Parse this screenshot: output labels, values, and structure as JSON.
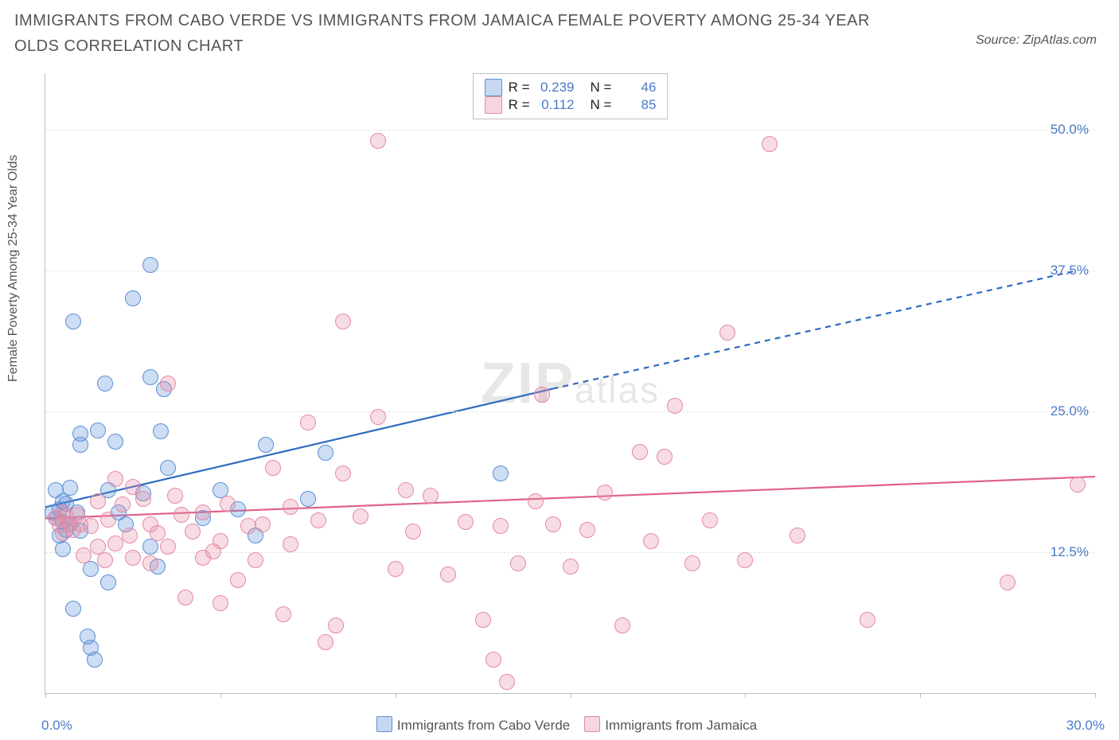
{
  "title": "IMMIGRANTS FROM CABO VERDE VS IMMIGRANTS FROM JAMAICA FEMALE POVERTY AMONG 25-34 YEAR OLDS CORRELATION CHART",
  "source": "Source: ZipAtlas.com",
  "ylabel": "Female Poverty Among 25-34 Year Olds",
  "watermark_main": "ZIP",
  "watermark_sub": "atlas",
  "chart": {
    "type": "scatter",
    "background_color": "#ffffff",
    "grid_color": "#e3e3e3",
    "axis_color": "#bfbfbf",
    "title_font_size": 20,
    "label_font_size": 16,
    "tick_font_size": 17,
    "xlim": [
      0,
      30
    ],
    "ylim": [
      0,
      55
    ],
    "y_grid_values": [
      12.5,
      25.0,
      37.5,
      50.0
    ],
    "y_grid_labels": [
      "12.5%",
      "25.0%",
      "37.5%",
      "50.0%"
    ],
    "x_tick_values": [
      0,
      5,
      10,
      15,
      20,
      25,
      30
    ],
    "x_min_label": "0.0%",
    "x_max_label": "30.0%",
    "marker_radius": 9,
    "marker_border_width": 1.5,
    "marker_fill_opacity": 0.3,
    "line_width": 2.2,
    "series": [
      {
        "name": "Immigrants from Cabo Verde",
        "color": "#5b8fd6",
        "line_color": "#2e6bc0",
        "R": "0.239",
        "N": "46",
        "trend": {
          "solid": {
            "x1": 0.0,
            "y1": 16.5,
            "x2": 14.5,
            "y2": 27.0
          },
          "dashed": {
            "x1": 14.5,
            "y1": 27.0,
            "x2": 29.5,
            "y2": 37.5
          }
        },
        "points": [
          [
            0.2,
            16.0
          ],
          [
            0.3,
            15.5
          ],
          [
            0.3,
            18.0
          ],
          [
            0.4,
            14.0
          ],
          [
            0.4,
            16.3
          ],
          [
            0.5,
            15.2
          ],
          [
            0.5,
            17.0
          ],
          [
            0.5,
            12.8
          ],
          [
            0.6,
            16.8
          ],
          [
            0.6,
            14.5
          ],
          [
            0.7,
            18.2
          ],
          [
            0.7,
            15.0
          ],
          [
            0.8,
            33.0
          ],
          [
            0.8,
            7.5
          ],
          [
            0.9,
            16.0
          ],
          [
            1.0,
            23.0
          ],
          [
            1.0,
            14.4
          ],
          [
            1.0,
            22.0
          ],
          [
            1.2,
            5.0
          ],
          [
            1.3,
            11.0
          ],
          [
            1.3,
            4.0
          ],
          [
            1.4,
            3.0
          ],
          [
            1.5,
            23.3
          ],
          [
            1.7,
            27.5
          ],
          [
            1.8,
            9.8
          ],
          [
            1.8,
            18.0
          ],
          [
            2.0,
            22.3
          ],
          [
            2.1,
            16.0
          ],
          [
            2.3,
            15.0
          ],
          [
            2.5,
            35.0
          ],
          [
            2.8,
            17.7
          ],
          [
            3.0,
            28.0
          ],
          [
            3.0,
            13.0
          ],
          [
            3.0,
            38.0
          ],
          [
            3.2,
            11.2
          ],
          [
            3.3,
            23.2
          ],
          [
            3.4,
            27.0
          ],
          [
            3.5,
            20.0
          ],
          [
            4.5,
            15.5
          ],
          [
            5.0,
            18.0
          ],
          [
            5.5,
            16.3
          ],
          [
            6.0,
            14.0
          ],
          [
            6.3,
            22.0
          ],
          [
            7.5,
            17.2
          ],
          [
            8.0,
            21.3
          ],
          [
            13.0,
            19.5
          ]
        ]
      },
      {
        "name": "Immigrants from Jamaica",
        "color": "#e48aa3",
        "line_color": "#e06288",
        "R": "0.112",
        "N": "85",
        "trend": {
          "solid": {
            "x1": 0.0,
            "y1": 15.5,
            "x2": 30.0,
            "y2": 19.2
          },
          "dashed": null
        },
        "points": [
          [
            0.3,
            15.5
          ],
          [
            0.4,
            14.9
          ],
          [
            0.5,
            16.0
          ],
          [
            0.5,
            14.2
          ],
          [
            0.6,
            15.7
          ],
          [
            0.7,
            15.0
          ],
          [
            0.8,
            14.5
          ],
          [
            0.9,
            15.8
          ],
          [
            1.0,
            15.0
          ],
          [
            1.1,
            12.2
          ],
          [
            1.3,
            14.8
          ],
          [
            1.5,
            13.0
          ],
          [
            1.5,
            17.0
          ],
          [
            1.7,
            11.8
          ],
          [
            1.8,
            15.4
          ],
          [
            2.0,
            19.0
          ],
          [
            2.0,
            13.3
          ],
          [
            2.2,
            16.7
          ],
          [
            2.4,
            14.0
          ],
          [
            2.5,
            12.0
          ],
          [
            2.5,
            18.3
          ],
          [
            2.8,
            17.2
          ],
          [
            3.0,
            15.0
          ],
          [
            3.0,
            11.5
          ],
          [
            3.2,
            14.2
          ],
          [
            3.5,
            27.5
          ],
          [
            3.5,
            13.0
          ],
          [
            3.7,
            17.5
          ],
          [
            3.9,
            15.8
          ],
          [
            4.0,
            8.5
          ],
          [
            4.2,
            14.3
          ],
          [
            4.5,
            12.0
          ],
          [
            4.5,
            16.0
          ],
          [
            4.8,
            12.6
          ],
          [
            5.0,
            8.0
          ],
          [
            5.0,
            13.5
          ],
          [
            5.2,
            16.8
          ],
          [
            5.5,
            10.0
          ],
          [
            5.8,
            14.8
          ],
          [
            6.0,
            11.8
          ],
          [
            6.2,
            15.0
          ],
          [
            6.5,
            20.0
          ],
          [
            6.8,
            7.0
          ],
          [
            7.0,
            13.2
          ],
          [
            7.0,
            16.5
          ],
          [
            7.5,
            24.0
          ],
          [
            7.8,
            15.3
          ],
          [
            8.0,
            4.5
          ],
          [
            8.3,
            6.0
          ],
          [
            8.5,
            33.0
          ],
          [
            8.5,
            19.5
          ],
          [
            9.0,
            15.7
          ],
          [
            9.5,
            24.5
          ],
          [
            9.5,
            49.0
          ],
          [
            10.0,
            11.0
          ],
          [
            10.3,
            18.0
          ],
          [
            10.5,
            14.3
          ],
          [
            11.0,
            17.5
          ],
          [
            11.5,
            10.5
          ],
          [
            12.0,
            15.2
          ],
          [
            12.5,
            6.5
          ],
          [
            12.8,
            3.0
          ],
          [
            13.0,
            14.8
          ],
          [
            13.2,
            1.0
          ],
          [
            13.5,
            11.5
          ],
          [
            14.0,
            17.0
          ],
          [
            14.2,
            26.5
          ],
          [
            14.5,
            15.0
          ],
          [
            15.0,
            11.2
          ],
          [
            15.5,
            14.5
          ],
          [
            16.0,
            17.8
          ],
          [
            16.5,
            6.0
          ],
          [
            17.0,
            21.4
          ],
          [
            17.3,
            13.5
          ],
          [
            17.7,
            21.0
          ],
          [
            18.0,
            25.5
          ],
          [
            18.5,
            11.5
          ],
          [
            19.0,
            15.3
          ],
          [
            19.5,
            32.0
          ],
          [
            20.0,
            11.8
          ],
          [
            20.7,
            48.7
          ],
          [
            21.5,
            14.0
          ],
          [
            23.5,
            6.5
          ],
          [
            27.5,
            9.8
          ],
          [
            29.5,
            18.5
          ]
        ]
      }
    ]
  }
}
